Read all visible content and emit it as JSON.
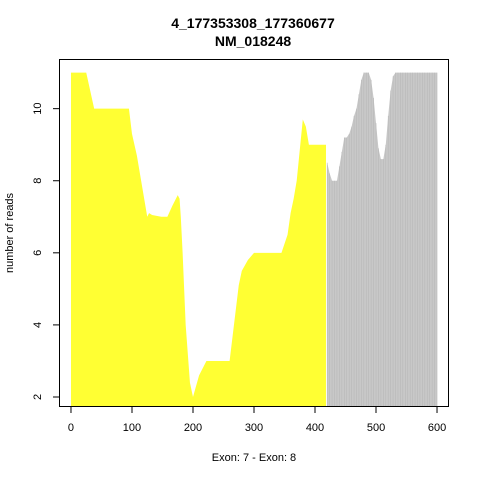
{
  "chart_data": {
    "type": "area",
    "title": "4_177353308_177360677",
    "subtitle": "NM_018248",
    "xlabel": "Exon: 7 - Exon: 8",
    "ylabel": "number of reads",
    "xlim": [
      -18,
      618
    ],
    "ylim": [
      1.75,
      11.35
    ],
    "xticks": [
      0,
      100,
      200,
      300,
      400,
      500,
      600
    ],
    "yticks": [
      2,
      4,
      6,
      8,
      10
    ],
    "grid": false,
    "series": [
      {
        "color": "#ffff33",
        "x": [
          0,
          25,
          38,
          95,
          100,
          108,
          115,
          125,
          128,
          133,
          148,
          158,
          166,
          175,
          178,
          180,
          183,
          188,
          195,
          200,
          205,
          210,
          222,
          260,
          275,
          280,
          290,
          300,
          345,
          355,
          360,
          365,
          370,
          380,
          385,
          390,
          395,
          418
        ],
        "y": [
          11,
          11,
          10,
          10,
          9.3,
          8.7,
          8,
          7,
          7.1,
          7.05,
          7,
          7,
          7.3,
          7.6,
          7.5,
          7,
          6,
          4,
          2.4,
          2,
          2.3,
          2.6,
          3,
          3,
          5.1,
          5.5,
          5.8,
          6,
          6,
          6.5,
          7.1,
          7.5,
          8,
          9.7,
          9.5,
          9,
          9,
          9
        ]
      },
      {
        "color": "#c8c8c8",
        "x": [
          420,
          424,
          428,
          432,
          436,
          440,
          444,
          448,
          452,
          456,
          460,
          464,
          468,
          472,
          476,
          480,
          484,
          488,
          492,
          496,
          500,
          504,
          508,
          512,
          516,
          520,
          524,
          528,
          532,
          536,
          540,
          544,
          548,
          552,
          556,
          560,
          564,
          568,
          572,
          576,
          580,
          584,
          588,
          592,
          596,
          600
        ],
        "y": [
          8.5,
          8.2,
          8,
          8,
          8,
          8.4,
          8.8,
          9.2,
          9.2,
          9.3,
          9.5,
          9.8,
          10,
          10.4,
          10.8,
          11,
          11,
          11,
          10.8,
          10.3,
          9.6,
          8.9,
          8.6,
          8.6,
          9,
          9.8,
          10.5,
          10.9,
          11,
          11,
          11,
          11,
          11,
          11,
          11,
          11,
          11,
          11,
          11,
          11,
          11,
          11,
          11,
          11,
          11,
          11
        ]
      }
    ]
  }
}
